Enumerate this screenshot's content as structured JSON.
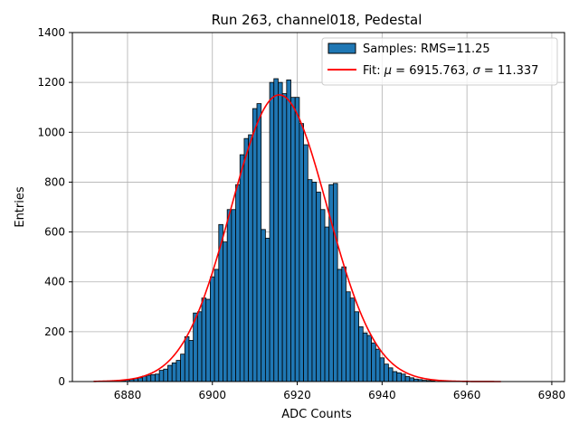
{
  "chart_data": {
    "type": "bar",
    "title": "Run 263, channel018, Pedestal",
    "xlabel": "ADC Counts",
    "ylabel": "Entries",
    "xlim": [
      6867,
      6983
    ],
    "ylim": [
      0,
      1400
    ],
    "xticks": [
      6880,
      6900,
      6920,
      6940,
      6960,
      6980
    ],
    "yticks": [
      0,
      200,
      400,
      600,
      800,
      1000,
      1200,
      1400
    ],
    "grid": true,
    "legend_position": "top-right",
    "bar_color": "#1f77b4",
    "fit_color": "#ff0000",
    "histogram": {
      "name": "Samples: RMS=11.25",
      "bin_width": 1,
      "bins": [
        [
          6879,
          4
        ],
        [
          6880,
          6
        ],
        [
          6881,
          8
        ],
        [
          6882,
          12
        ],
        [
          6883,
          15
        ],
        [
          6884,
          22
        ],
        [
          6885,
          25
        ],
        [
          6886,
          28
        ],
        [
          6887,
          30
        ],
        [
          6888,
          45
        ],
        [
          6889,
          50
        ],
        [
          6890,
          65
        ],
        [
          6891,
          75
        ],
        [
          6892,
          85
        ],
        [
          6893,
          110
        ],
        [
          6894,
          180
        ],
        [
          6895,
          165
        ],
        [
          6896,
          275
        ],
        [
          6897,
          280
        ],
        [
          6898,
          335
        ],
        [
          6899,
          330
        ],
        [
          6900,
          420
        ],
        [
          6901,
          450
        ],
        [
          6902,
          630
        ],
        [
          6903,
          560
        ],
        [
          6904,
          690
        ],
        [
          6905,
          690
        ],
        [
          6906,
          790
        ],
        [
          6907,
          910
        ],
        [
          6908,
          975
        ],
        [
          6909,
          990
        ],
        [
          6910,
          1095
        ],
        [
          6911,
          1115
        ],
        [
          6912,
          610
        ],
        [
          6913,
          575
        ],
        [
          6914,
          1200
        ],
        [
          6915,
          1215
        ],
        [
          6916,
          1200
        ],
        [
          6917,
          1155
        ],
        [
          6918,
          1210
        ],
        [
          6919,
          1140
        ],
        [
          6920,
          1140
        ],
        [
          6921,
          1035
        ],
        [
          6922,
          950
        ],
        [
          6923,
          810
        ],
        [
          6924,
          800
        ],
        [
          6925,
          760
        ],
        [
          6926,
          690
        ],
        [
          6927,
          620
        ],
        [
          6928,
          790
        ],
        [
          6929,
          795
        ],
        [
          6930,
          450
        ],
        [
          6931,
          460
        ],
        [
          6932,
          360
        ],
        [
          6933,
          335
        ],
        [
          6934,
          280
        ],
        [
          6935,
          220
        ],
        [
          6936,
          195
        ],
        [
          6937,
          185
        ],
        [
          6938,
          155
        ],
        [
          6939,
          130
        ],
        [
          6940,
          95
        ],
        [
          6941,
          70
        ],
        [
          6942,
          55
        ],
        [
          6943,
          40
        ],
        [
          6944,
          35
        ],
        [
          6945,
          30
        ],
        [
          6946,
          20
        ],
        [
          6947,
          15
        ],
        [
          6948,
          10
        ],
        [
          6949,
          8
        ],
        [
          6950,
          5
        ],
        [
          6951,
          4
        ],
        [
          6952,
          3
        ]
      ]
    },
    "fit": {
      "name_prefix": "Fit: ",
      "mu_symbol": "μ",
      "mu_text": " = 6915.763, ",
      "sigma_symbol": "σ",
      "sigma_text": " = 11.337",
      "mu": 6915.763,
      "sigma": 11.337,
      "amplitude": 1150,
      "x_range": [
        6872,
        6968
      ]
    }
  }
}
